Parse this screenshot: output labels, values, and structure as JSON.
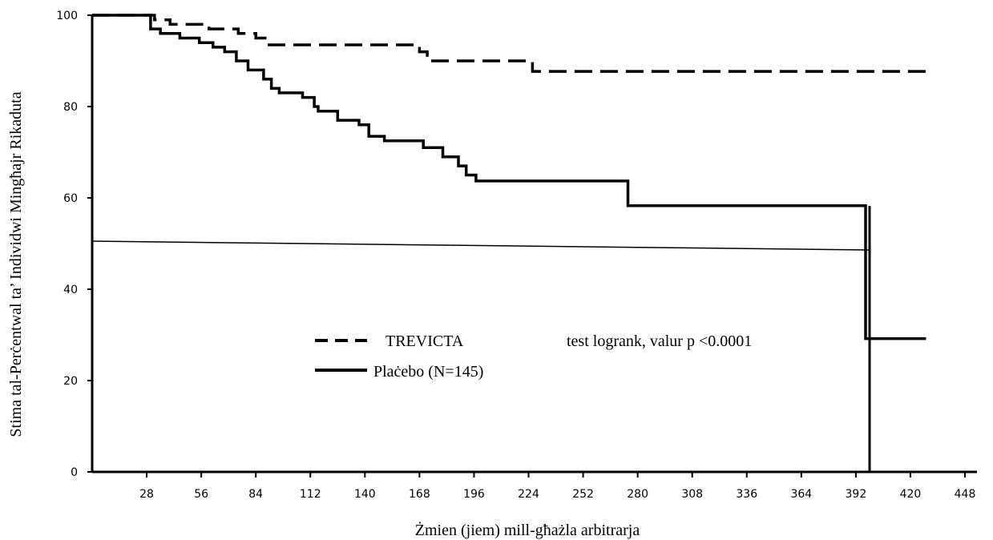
{
  "chart_data": {
    "type": "line",
    "title": "",
    "xlabel": "Żmien (jiem) mill-għażla arbitrarja",
    "ylabel": "Stima tal-Perċentwal ta’ Individwi Mingħajr Rikaduta",
    "xlim": [
      0,
      448
    ],
    "ylim": [
      0,
      100
    ],
    "xticks": [
      "28",
      "56",
      "84",
      "112",
      "140",
      "168",
      "196",
      "224",
      "252",
      "280",
      "308",
      "336",
      "364",
      "392",
      "420",
      "448"
    ],
    "yticks": [
      "0",
      "20",
      "40",
      "60",
      "80",
      "100"
    ],
    "grid": false,
    "legend_position": "lower-center",
    "annotation": "test logrank, valur p <0.0001",
    "series": [
      {
        "name": "TREVICTA",
        "style": "dashed",
        "color": "#000000",
        "x": [
          0,
          32,
          32,
          40,
          40,
          60,
          60,
          75,
          75,
          84,
          84,
          90,
          90,
          168,
          168,
          172,
          172,
          226,
          226,
          428
        ],
        "y": [
          100,
          100,
          99,
          99,
          98,
          98,
          97,
          97,
          96,
          96,
          95,
          95,
          93.5,
          93.5,
          92,
          92,
          90,
          90,
          87.7,
          87.7
        ]
      },
      {
        "name": "Plaċebo (N=145)",
        "style": "solid",
        "color": "#000000",
        "x": [
          0,
          30,
          30,
          35,
          35,
          45,
          45,
          55,
          55,
          62,
          62,
          68,
          68,
          74,
          74,
          80,
          80,
          88,
          88,
          92,
          92,
          96,
          96,
          108,
          108,
          114,
          114,
          116,
          116,
          126,
          126,
          137,
          137,
          142,
          142,
          150,
          150,
          170,
          170,
          180,
          180,
          188,
          188,
          192,
          192,
          197,
          197,
          275,
          275,
          397,
          397,
          428
        ],
        "y": [
          100,
          100,
          97,
          97,
          96,
          96,
          95,
          95,
          94,
          94,
          93,
          93,
          92,
          92,
          90,
          90,
          88,
          88,
          86,
          86,
          84,
          84,
          83,
          83,
          82,
          82,
          80,
          80,
          79,
          79,
          77,
          77,
          76,
          76,
          73.5,
          73.5,
          72.5,
          72.5,
          71,
          71,
          69,
          69,
          67,
          67,
          65,
          65,
          63.7,
          63.7,
          58.3,
          58.3,
          29.2,
          29.2
        ]
      }
    ]
  },
  "legend": {
    "treviCta": "TREVICTA",
    "placebo": "Plaċebo (N=145)"
  }
}
